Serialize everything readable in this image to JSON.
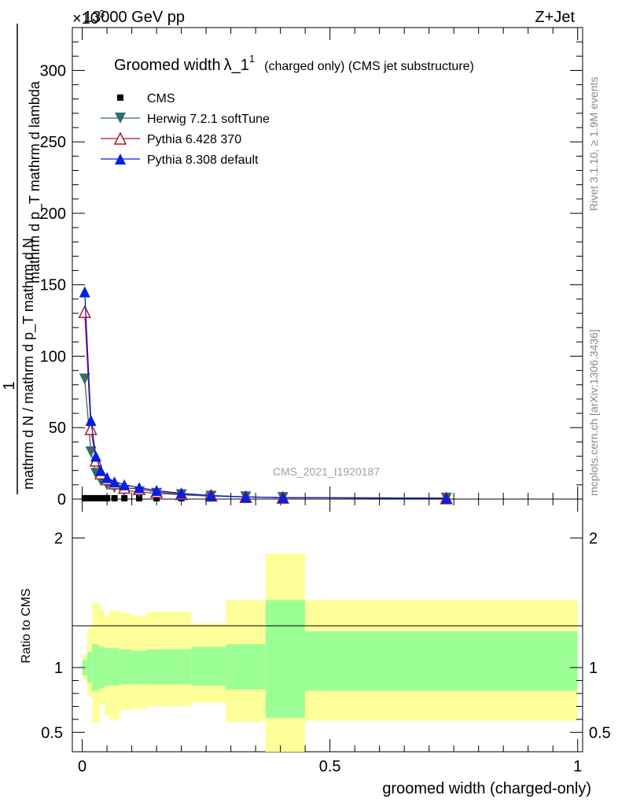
{
  "header": {
    "energy_label": "13000 GeV pp",
    "process_label": "Z+Jet",
    "exponent_label": "×10",
    "exponent_sup": "3"
  },
  "side_labels": {
    "rivet": "Rivet 3.1.10, ≥ 1.9M events",
    "mcplots": "mcplots.cern.ch [arXiv:1306.3436]"
  },
  "watermark": "CMS_2021_I1920187",
  "title": {
    "main": "Groomed width",
    "lambda": "λ_1",
    "sup": "1",
    "sub": "(charged only) (CMS jet substructure)"
  },
  "legend": [
    {
      "name": "CMS",
      "marker": "square",
      "color": "#000000"
    },
    {
      "name": "Herwig 7.2.1 softTune",
      "marker": "triangle-down",
      "color": "#2e6e6e"
    },
    {
      "name": "Pythia 6.428 370",
      "marker": "triangle-open",
      "color": "#b0181e"
    },
    {
      "name": "Pythia 8.308 default",
      "marker": "triangle-up",
      "color": "#0a1ee0"
    }
  ],
  "chart_data": [
    {
      "type": "line",
      "panel": "main",
      "ylabel_top": "1",
      "ylabel_line1": "mathrm d N / mathrm d p_T mathrm d N",
      "ylabel_line2": "mathrm d p_T mathrm d lambda",
      "ylim": [
        0,
        330
      ],
      "yticks": [
        "0",
        "50",
        "100",
        "150",
        "200",
        "250",
        "300"
      ],
      "y_multiplier": "×10^3",
      "xlim": [
        -0.02,
        1.01
      ],
      "x": [
        0.005,
        0.0175,
        0.0275,
        0.0375,
        0.05,
        0.065,
        0.085,
        0.115,
        0.15,
        0.2,
        0.26,
        0.33,
        0.405,
        0.735
      ],
      "series": [
        {
          "name": "CMS",
          "values": [
            0.6,
            0.6,
            0.6,
            0.6,
            0.6,
            0.6,
            0.6,
            0.6,
            0.6,
            0.6,
            0.6,
            0.6,
            0.6,
            0.6
          ]
        },
        {
          "name": "Herwig 7.2.1 softTune",
          "values": [
            84,
            33,
            18,
            13,
            10,
            8,
            6,
            5,
            4,
            3,
            2,
            1.5,
            1,
            0.6
          ]
        },
        {
          "name": "Pythia 6.428 370",
          "values": [
            131,
            49,
            27,
            18,
            14,
            11,
            8,
            7,
            5,
            3.5,
            2.5,
            1.5,
            1,
            0.6
          ]
        },
        {
          "name": "Pythia 8.308 default",
          "values": [
            145,
            55,
            30,
            20,
            15,
            12,
            10,
            8,
            6,
            4,
            2.5,
            1.5,
            1,
            0.6
          ]
        }
      ]
    },
    {
      "type": "area",
      "panel": "ratio",
      "ylabel": "Ratio to CMS",
      "xlabel": "groomed width (charged-only)",
      "ylim": [
        0.35,
        2.3
      ],
      "yticks": [
        "0.5",
        "1",
        "2"
      ],
      "xticks": [
        "0",
        "0.5",
        "1"
      ],
      "xlim": [
        -0.02,
        1.01
      ],
      "bins": [
        {
          "x0": 0.0,
          "x1": 0.01,
          "stat_lo": 0.94,
          "stat_hi": 1.06,
          "tot_lo": 0.9,
          "tot_hi": 1.1
        },
        {
          "x0": 0.01,
          "x1": 0.02,
          "stat_lo": 0.88,
          "stat_hi": 1.12,
          "tot_lo": 0.78,
          "tot_hi": 1.3
        },
        {
          "x0": 0.02,
          "x1": 0.035,
          "stat_lo": 0.82,
          "stat_hi": 1.18,
          "tot_lo": 0.58,
          "tot_hi": 1.5
        },
        {
          "x0": 0.035,
          "x1": 0.045,
          "stat_lo": 0.84,
          "stat_hi": 1.16,
          "tot_lo": 0.72,
          "tot_hi": 1.45
        },
        {
          "x0": 0.045,
          "x1": 0.055,
          "stat_lo": 0.86,
          "stat_hi": 1.15,
          "tot_lo": 0.63,
          "tot_hi": 1.4
        },
        {
          "x0": 0.055,
          "x1": 0.075,
          "stat_lo": 0.86,
          "stat_hi": 1.15,
          "tot_lo": 0.6,
          "tot_hi": 1.44
        },
        {
          "x0": 0.075,
          "x1": 0.1,
          "stat_lo": 0.87,
          "stat_hi": 1.14,
          "tot_lo": 0.67,
          "tot_hi": 1.42
        },
        {
          "x0": 0.1,
          "x1": 0.13,
          "stat_lo": 0.87,
          "stat_hi": 1.13,
          "tot_lo": 0.68,
          "tot_hi": 1.4
        },
        {
          "x0": 0.13,
          "x1": 0.22,
          "stat_lo": 0.87,
          "stat_hi": 1.14,
          "tot_lo": 0.7,
          "tot_hi": 1.43
        },
        {
          "x0": 0.22,
          "x1": 0.29,
          "stat_lo": 0.86,
          "stat_hi": 1.16,
          "tot_lo": 0.73,
          "tot_hi": 1.34
        },
        {
          "x0": 0.29,
          "x1": 0.37,
          "stat_lo": 0.83,
          "stat_hi": 1.18,
          "tot_lo": 0.58,
          "tot_hi": 1.52
        },
        {
          "x0": 0.37,
          "x1": 0.45,
          "stat_lo": 0.61,
          "stat_hi": 1.52,
          "tot_lo": 0.3,
          "tot_hi": 1.88
        },
        {
          "x0": 0.45,
          "x1": 1.0,
          "stat_lo": 0.82,
          "stat_hi": 1.28,
          "tot_lo": 0.59,
          "tot_hi": 1.52
        }
      ]
    }
  ],
  "colors": {
    "stat_band": "#9cff96",
    "total_band": "#ffff99",
    "axis": "#000000"
  }
}
